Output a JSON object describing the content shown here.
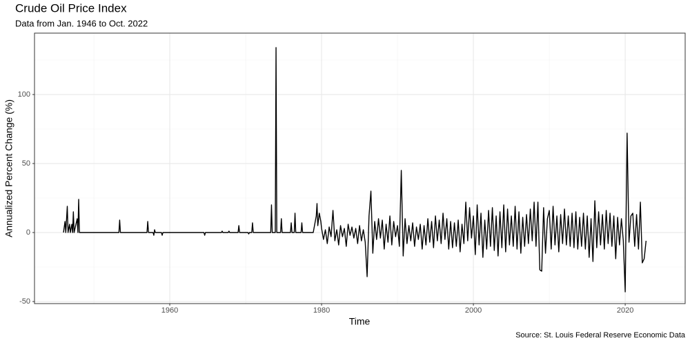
{
  "chart_data": {
    "type": "line",
    "title": "Crude Oil Price Index",
    "subtitle": "Data from Jan. 1946 to Oct. 2022",
    "x_label": "Time",
    "y_label": "Annualized Percent Change (%)",
    "caption": "Source: St. Louis Federal Reserve Economic Data",
    "color": "#000000",
    "grid": true,
    "xlim": [
      1942.18,
      2027.9
    ],
    "ylim": [
      -51.5,
      144.5
    ],
    "xticks": [
      1960,
      1980,
      2000,
      2020
    ],
    "yticks": [
      -50,
      0,
      50,
      100
    ],
    "x_minor_ticks": [
      1950,
      1970,
      1990,
      2010
    ],
    "y_minor_ticks": [
      -25,
      25,
      75,
      125
    ],
    "x": [
      1946.0,
      1946.2,
      1946.3,
      1946.5,
      1946.6,
      1946.8,
      1946.9,
      1947.1,
      1947.2,
      1947.3,
      1947.4,
      1947.8,
      1947.9,
      1948.0,
      1948.1,
      1953.3,
      1953.4,
      1953.5,
      1957.0,
      1957.1,
      1957.2,
      1957.8,
      1957.9,
      1958.0,
      1958.1,
      1958.9,
      1959.0,
      1959.1,
      1964.5,
      1964.6,
      1964.7,
      1966.8,
      1966.9,
      1967.0,
      1967.7,
      1967.8,
      1967.9,
      1969.0,
      1969.1,
      1969.2,
      1970.3,
      1970.4,
      1970.5,
      1970.8,
      1970.9,
      1971.0,
      1973.3,
      1973.4,
      1973.5,
      1973.9,
      1974.0,
      1974.1,
      1974.6,
      1974.7,
      1974.8,
      1975.9,
      1976.0,
      1976.1,
      1976.4,
      1976.5,
      1976.6,
      1977.3,
      1977.4,
      1977.5,
      1978.9,
      1979.1,
      1979.3,
      1979.4,
      1979.5,
      1979.7,
      1979.9,
      1980.0,
      1980.25,
      1980.5,
      1980.75,
      1981.0,
      1981.25,
      1981.5,
      1981.75,
      1982.0,
      1982.25,
      1982.5,
      1982.75,
      1983.0,
      1983.25,
      1983.5,
      1983.75,
      1984.0,
      1984.25,
      1984.5,
      1984.75,
      1985.0,
      1985.25,
      1985.5,
      1985.75,
      1986.0,
      1986.25,
      1986.5,
      1986.75,
      1987.0,
      1987.25,
      1987.5,
      1987.75,
      1988.0,
      1988.25,
      1988.5,
      1988.75,
      1989.0,
      1989.25,
      1989.5,
      1989.75,
      1990.0,
      1990.25,
      1990.5,
      1990.75,
      1991.0,
      1991.25,
      1991.5,
      1991.75,
      1992.0,
      1992.25,
      1992.5,
      1992.75,
      1993.0,
      1993.25,
      1993.5,
      1993.75,
      1994.0,
      1994.25,
      1994.5,
      1994.75,
      1995.0,
      1995.25,
      1995.5,
      1995.75,
      1996.0,
      1996.25,
      1996.5,
      1996.75,
      1997.0,
      1997.25,
      1997.5,
      1997.75,
      1998.0,
      1998.25,
      1998.5,
      1998.75,
      1999.0,
      1999.25,
      1999.5,
      1999.75,
      2000.0,
      2000.25,
      2000.5,
      2000.75,
      2001.0,
      2001.25,
      2001.5,
      2001.75,
      2002.0,
      2002.25,
      2002.5,
      2002.75,
      2003.0,
      2003.25,
      2003.5,
      2003.75,
      2004.0,
      2004.25,
      2004.5,
      2004.75,
      2005.0,
      2005.25,
      2005.5,
      2005.75,
      2006.0,
      2006.25,
      2006.5,
      2006.75,
      2007.0,
      2007.25,
      2007.5,
      2007.75,
      2008.0,
      2008.25,
      2008.5,
      2008.75,
      2009.0,
      2009.25,
      2009.5,
      2009.75,
      2010.0,
      2010.25,
      2010.5,
      2010.75,
      2011.0,
      2011.25,
      2011.5,
      2011.75,
      2012.0,
      2012.25,
      2012.5,
      2012.75,
      2013.0,
      2013.25,
      2013.5,
      2013.75,
      2014.0,
      2014.25,
      2014.5,
      2014.75,
      2015.0,
      2015.25,
      2015.5,
      2015.75,
      2016.0,
      2016.25,
      2016.5,
      2016.75,
      2017.0,
      2017.25,
      2017.5,
      2017.75,
      2018.0,
      2018.25,
      2018.5,
      2018.75,
      2019.0,
      2019.25,
      2019.5,
      2019.75,
      2020.0,
      2020.25,
      2020.5,
      2020.75,
      2021.0,
      2021.25,
      2021.5,
      2021.75,
      2022.0,
      2022.25,
      2022.5,
      2022.75
    ],
    "values": [
      0,
      8,
      0,
      19,
      0,
      6,
      0,
      6,
      0,
      15,
      0,
      10,
      0,
      24,
      0,
      0,
      9,
      0,
      0,
      8,
      0,
      0,
      -2,
      2,
      0,
      0,
      -2,
      0,
      0,
      -2,
      0,
      0,
      1,
      0,
      0,
      1,
      0,
      0,
      5,
      0,
      0,
      -1,
      0,
      0,
      7,
      0,
      0,
      20,
      0,
      0,
      134,
      0,
      0,
      10,
      0,
      0,
      7,
      0,
      0,
      14,
      0,
      0,
      7,
      0,
      0,
      6,
      12,
      21,
      5,
      14,
      8,
      3,
      -5,
      2,
      -8,
      4,
      -3,
      16,
      -6,
      2,
      -9,
      5,
      -3,
      3,
      -10,
      6,
      -2,
      4,
      -4,
      3,
      -8,
      5,
      -6,
      2,
      -7,
      -32,
      12,
      30,
      -15,
      8,
      -5,
      10,
      -4,
      9,
      -12,
      6,
      -7,
      12,
      -9,
      8,
      -3,
      5,
      -10,
      45,
      -17,
      10,
      -8,
      5,
      -6,
      7,
      -10,
      4,
      -5,
      6,
      -12,
      5,
      -9,
      10,
      -7,
      8,
      -11,
      12,
      -6,
      9,
      -8,
      14,
      -5,
      10,
      -12,
      8,
      -11,
      7,
      -10,
      9,
      -14,
      6,
      -8,
      22,
      -6,
      18,
      -4,
      12,
      -16,
      20,
      -9,
      14,
      -18,
      9,
      -12,
      16,
      -10,
      18,
      -13,
      12,
      -17,
      15,
      -11,
      20,
      -14,
      17,
      -9,
      12,
      -10,
      19,
      -12,
      15,
      -15,
      11,
      -10,
      13,
      -8,
      17,
      -6,
      22,
      -10,
      22,
      -27,
      -28,
      18,
      -15,
      10,
      16,
      -12,
      19,
      -9,
      12,
      -14,
      13,
      -8,
      17,
      -9,
      12,
      -10,
      14,
      -11,
      15,
      -12,
      11,
      -10,
      14,
      -12,
      12,
      -18,
      10,
      -21,
      23,
      -11,
      15,
      -9,
      13,
      -12,
      16,
      -8,
      14,
      -10,
      12,
      -19,
      11,
      -9,
      10,
      -6,
      -43,
      72,
      -7,
      12,
      14,
      -10,
      13,
      -12,
      22,
      -22,
      -19,
      -6
    ]
  }
}
